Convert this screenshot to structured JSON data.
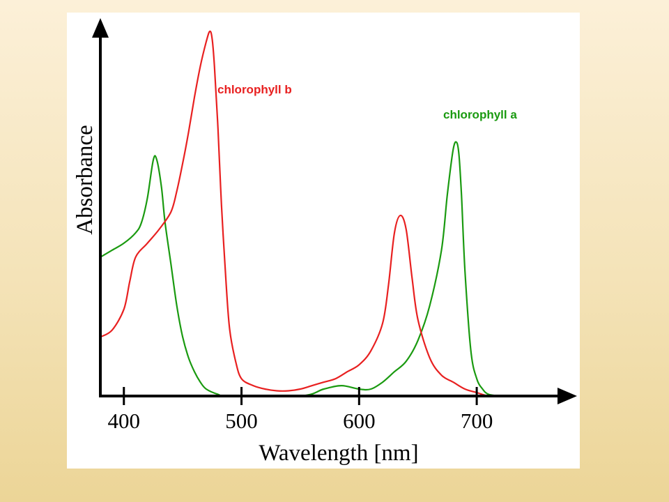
{
  "chart_data": {
    "type": "line",
    "title": "",
    "xlabel": "Wavelength [nm]",
    "ylabel": "Absorbance",
    "xlim": [
      380,
      790
    ],
    "ylim": [
      0,
      1.06
    ],
    "xticks": [
      400,
      500,
      600,
      700
    ],
    "grid": false,
    "legend": "inline labels near peaks",
    "series": [
      {
        "name": "chlorophyll a",
        "color": "#1a9a10",
        "x": [
          380,
          390,
          400,
          410,
          415,
          420,
          425,
          428,
          432,
          435,
          440,
          445,
          450,
          455,
          460,
          465,
          470,
          480,
          490,
          550,
          570,
          585,
          600,
          610,
          620,
          630,
          640,
          650,
          660,
          670,
          675,
          680,
          683,
          685,
          687,
          690,
          695,
          700,
          705,
          710,
          720
        ],
        "y": [
          0.4,
          0.42,
          0.44,
          0.47,
          0.5,
          0.57,
          0.68,
          0.68,
          0.6,
          0.5,
          0.38,
          0.26,
          0.17,
          0.11,
          0.07,
          0.04,
          0.02,
          0.005,
          0,
          0,
          0.02,
          0.03,
          0.02,
          0.02,
          0.04,
          0.07,
          0.1,
          0.16,
          0.26,
          0.42,
          0.58,
          0.71,
          0.73,
          0.69,
          0.58,
          0.36,
          0.13,
          0.05,
          0.02,
          0.005,
          0
        ]
      },
      {
        "name": "chlorophyll b",
        "color": "#e82020",
        "x": [
          380,
          390,
          400,
          405,
          410,
          420,
          430,
          440,
          445,
          450,
          455,
          460,
          465,
          470,
          473,
          475,
          477,
          480,
          483,
          487,
          490,
          495,
          500,
          510,
          520,
          530,
          540,
          550,
          560,
          570,
          580,
          590,
          600,
          610,
          620,
          625,
          630,
          635,
          640,
          645,
          650,
          660,
          670,
          680,
          690,
          700,
          710,
          720
        ],
        "y": [
          0.17,
          0.19,
          0.25,
          0.33,
          0.4,
          0.44,
          0.48,
          0.53,
          0.59,
          0.67,
          0.76,
          0.86,
          0.95,
          1.02,
          1.05,
          1.03,
          0.95,
          0.77,
          0.55,
          0.32,
          0.19,
          0.1,
          0.05,
          0.03,
          0.02,
          0.015,
          0.015,
          0.02,
          0.03,
          0.04,
          0.05,
          0.07,
          0.09,
          0.13,
          0.21,
          0.32,
          0.47,
          0.52,
          0.48,
          0.34,
          0.22,
          0.11,
          0.06,
          0.04,
          0.02,
          0.01,
          0,
          0
        ]
      }
    ]
  }
}
